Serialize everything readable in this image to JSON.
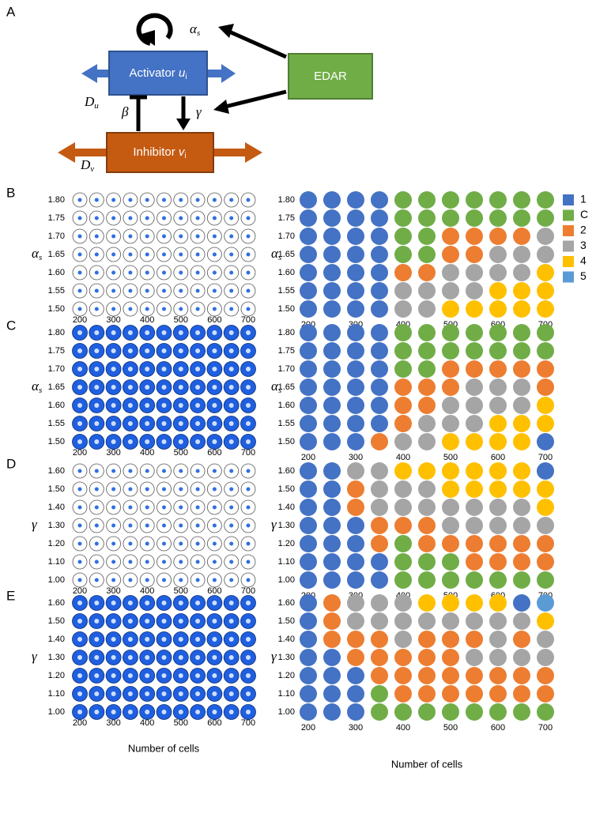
{
  "panel_a": {
    "letter": "A",
    "activator": {
      "text": "Activator ",
      "var": "u",
      "sub": "i"
    },
    "inhibitor": {
      "text": "Inhibitor ",
      "var": "v",
      "sub": "i"
    },
    "edar": "EDAR",
    "alpha": {
      "symbol": "α",
      "sub": "s"
    },
    "du": {
      "symbol": "D",
      "sub": "u"
    },
    "dv": {
      "symbol": "D",
      "sub": "v"
    },
    "beta": "β",
    "gamma": "γ"
  },
  "legend": [
    {
      "label": "1",
      "color": "#4472c4"
    },
    {
      "label": "C",
      "color": "#70ad47"
    },
    {
      "label": "2",
      "color": "#ed7d31"
    },
    {
      "label": "3",
      "color": "#a5a5a5"
    },
    {
      "label": "4",
      "color": "#ffc000"
    },
    {
      "label": "5",
      "color": "#5b9bd5"
    }
  ],
  "xlabel": "Number of cells",
  "panels": [
    {
      "letter": "B",
      "param": {
        "symbol": "α",
        "sub": "s"
      },
      "style": "outline",
      "rows": [
        "1.80",
        "1.75",
        "1.70",
        "1.65",
        "1.60",
        "1.55",
        "1.50"
      ],
      "columns": [
        200,
        250,
        300,
        350,
        400,
        450,
        500,
        550,
        600,
        650,
        700
      ],
      "xticks": [
        200,
        300,
        400,
        500,
        600,
        700
      ],
      "dominant": [
        [
          "1",
          "1",
          "1",
          "1",
          "C",
          "C",
          "C",
          "C",
          "C",
          "C",
          "C"
        ],
        [
          "1",
          "1",
          "1",
          "1",
          "C",
          "C",
          "C",
          "C",
          "C",
          "C",
          "C"
        ],
        [
          "1",
          "1",
          "1",
          "1",
          "C",
          "C",
          "2",
          "2",
          "2",
          "2",
          "3"
        ],
        [
          "1",
          "1",
          "1",
          "1",
          "C",
          "C",
          "2",
          "2",
          "3",
          "3",
          "3"
        ],
        [
          "1",
          "1",
          "1",
          "1",
          "2",
          "2",
          "3",
          "3",
          "3",
          "3",
          "4"
        ],
        [
          "1",
          "1",
          "1",
          "1",
          "3",
          "3",
          "3",
          "3",
          "4",
          "4",
          "4"
        ],
        [
          "1",
          "1",
          "1",
          "1",
          "3",
          "3",
          "4",
          "4",
          "4",
          "4",
          "4"
        ]
      ]
    },
    {
      "letter": "C",
      "param": {
        "symbol": "α",
        "sub": "s"
      },
      "style": "filled",
      "rows": [
        "1.80",
        "1.75",
        "1.70",
        "1.65",
        "1.60",
        "1.55",
        "1.50"
      ],
      "columns": [
        200,
        250,
        300,
        350,
        400,
        450,
        500,
        550,
        600,
        650,
        700
      ],
      "xticks": [
        200,
        300,
        400,
        500,
        600,
        700
      ],
      "dominant": [
        [
          "1",
          "1",
          "1",
          "1",
          "C",
          "C",
          "C",
          "C",
          "C",
          "C",
          "C"
        ],
        [
          "1",
          "1",
          "1",
          "1",
          "C",
          "C",
          "C",
          "C",
          "C",
          "C",
          "C"
        ],
        [
          "1",
          "1",
          "1",
          "1",
          "C",
          "C",
          "2",
          "2",
          "2",
          "2",
          "2"
        ],
        [
          "1",
          "1",
          "1",
          "1",
          "2",
          "2",
          "2",
          "3",
          "3",
          "3",
          "2"
        ],
        [
          "1",
          "1",
          "1",
          "1",
          "2",
          "2",
          "3",
          "3",
          "3",
          "3",
          "4"
        ],
        [
          "1",
          "1",
          "1",
          "1",
          "2",
          "3",
          "3",
          "3",
          "4",
          "4",
          "4"
        ],
        [
          "1",
          "1",
          "1",
          "2",
          "3",
          "3",
          "4",
          "4",
          "4",
          "4",
          "1"
        ]
      ]
    },
    {
      "letter": "D",
      "param": {
        "symbol": "γ",
        "sub": ""
      },
      "style": "outline",
      "rows": [
        "1.60",
        "1.50",
        "1.40",
        "1.30",
        "1.20",
        "1.10",
        "1.00"
      ],
      "columns": [
        200,
        250,
        300,
        350,
        400,
        450,
        500,
        550,
        600,
        650,
        700
      ],
      "xticks": [
        200,
        300,
        400,
        500,
        600,
        700
      ],
      "dominant": [
        [
          "1",
          "1",
          "3",
          "3",
          "4",
          "4",
          "4",
          "4",
          "4",
          "4",
          "1"
        ],
        [
          "1",
          "1",
          "2",
          "3",
          "3",
          "3",
          "4",
          "4",
          "4",
          "4",
          "4"
        ],
        [
          "1",
          "1",
          "2",
          "3",
          "3",
          "3",
          "3",
          "3",
          "3",
          "3",
          "4"
        ],
        [
          "1",
          "1",
          "1",
          "2",
          "2",
          "2",
          "3",
          "3",
          "3",
          "3",
          "3"
        ],
        [
          "1",
          "1",
          "1",
          "2",
          "C",
          "2",
          "2",
          "2",
          "2",
          "2",
          "2"
        ],
        [
          "1",
          "1",
          "1",
          "1",
          "C",
          "C",
          "C",
          "2",
          "2",
          "2",
          "2"
        ],
        [
          "1",
          "1",
          "1",
          "1",
          "C",
          "C",
          "C",
          "C",
          "C",
          "C",
          "C"
        ]
      ]
    },
    {
      "letter": "E",
      "param": {
        "symbol": "γ",
        "sub": ""
      },
      "style": "filled",
      "rows": [
        "1.60",
        "1.50",
        "1.40",
        "1.30",
        "1.20",
        "1.10",
        "1.00"
      ],
      "columns": [
        200,
        250,
        300,
        350,
        400,
        450,
        500,
        550,
        600,
        650,
        700
      ],
      "xticks": [
        200,
        300,
        400,
        500,
        600,
        700
      ],
      "dominant": [
        [
          "1",
          "2",
          "3",
          "3",
          "3",
          "4",
          "4",
          "4",
          "4",
          "1",
          "5"
        ],
        [
          "1",
          "2",
          "3",
          "3",
          "3",
          "3",
          "3",
          "3",
          "3",
          "3",
          "4"
        ],
        [
          "1",
          "2",
          "2",
          "2",
          "3",
          "2",
          "2",
          "2",
          "3",
          "2",
          "3"
        ],
        [
          "1",
          "1",
          "2",
          "2",
          "2",
          "2",
          "2",
          "3",
          "3",
          "3",
          "3"
        ],
        [
          "1",
          "1",
          "1",
          "2",
          "2",
          "2",
          "2",
          "2",
          "2",
          "2",
          "2"
        ],
        [
          "1",
          "1",
          "1",
          "C",
          "2",
          "2",
          "2",
          "2",
          "2",
          "2",
          "2"
        ],
        [
          "1",
          "1",
          "1",
          "C",
          "C",
          "C",
          "C",
          "C",
          "C",
          "C",
          "C"
        ]
      ]
    }
  ]
}
